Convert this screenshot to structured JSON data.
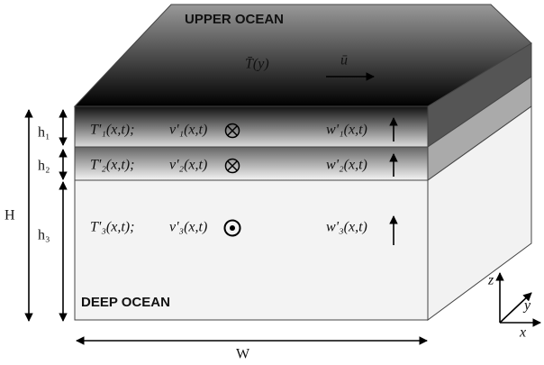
{
  "top_label": "UPPER OCEAN",
  "bottom_label": "DEEP OCEAN",
  "mean_temperature": "T̄(y)",
  "mean_flow": "ū",
  "layers": [
    {
      "height": "h₁",
      "temperature": "T'₁(x,t);",
      "meridional_velocity": "v'₁(x,t)",
      "vertical_velocity": "w'₁(x,t)"
    },
    {
      "height": "h₂",
      "temperature": "T'₂(x,t);",
      "meridional_velocity": "v'₂(x,t)",
      "vertical_velocity": "w'₂(x,t)"
    },
    {
      "height": "h₃",
      "temperature": "T'₃(x,t);",
      "meridional_velocity": "v'₃(x,t)",
      "vertical_velocity": "w'₃(x,t)"
    }
  ],
  "total_depth": "H",
  "width": "W",
  "axes": {
    "z": "z",
    "y": "y",
    "x": "x"
  }
}
